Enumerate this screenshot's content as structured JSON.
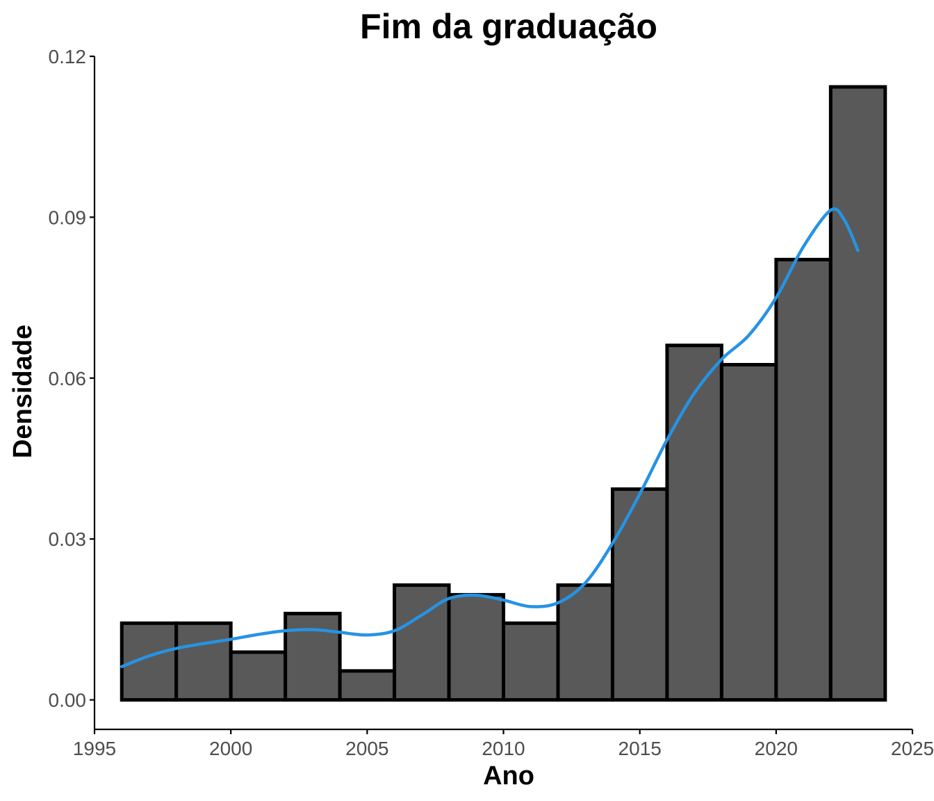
{
  "chart_data": {
    "type": "bar",
    "title": "Fim da graduação",
    "xlabel": "Ano",
    "ylabel": "Densidade",
    "xlim": [
      1995,
      2025
    ],
    "ylim": [
      -0.0055,
      0.12
    ],
    "x_ticks": [
      1995,
      2000,
      2005,
      2010,
      2015,
      2020,
      2025
    ],
    "x_tick_labels": [
      "1995",
      "2000",
      "2005",
      "2010",
      "2015",
      "2020",
      "2025"
    ],
    "y_ticks": [
      0.0,
      0.03,
      0.06,
      0.09,
      0.12
    ],
    "y_tick_labels": [
      "0.00",
      "0.03",
      "0.06",
      "0.09",
      "0.12"
    ],
    "bins": [
      {
        "x0": 1996,
        "x1": 1998,
        "value": 0.0143
      },
      {
        "x0": 1998,
        "x1": 2000,
        "value": 0.0143
      },
      {
        "x0": 2000,
        "x1": 2002,
        "value": 0.0089
      },
      {
        "x0": 2002,
        "x1": 2004,
        "value": 0.0161
      },
      {
        "x0": 2004,
        "x1": 2006,
        "value": 0.0054
      },
      {
        "x0": 2006,
        "x1": 2008,
        "value": 0.0214
      },
      {
        "x0": 2008,
        "x1": 2010,
        "value": 0.0196
      },
      {
        "x0": 2010,
        "x1": 2012,
        "value": 0.0143
      },
      {
        "x0": 2012,
        "x1": 2014,
        "value": 0.0214
      },
      {
        "x0": 2014,
        "x1": 2016,
        "value": 0.0393
      },
      {
        "x0": 2016,
        "x1": 2018,
        "value": 0.0661
      },
      {
        "x0": 2018,
        "x1": 2020,
        "value": 0.0625
      },
      {
        "x0": 2020,
        "x1": 2022,
        "value": 0.0821
      },
      {
        "x0": 2022,
        "x1": 2024,
        "value": 0.1143
      }
    ],
    "density_curve": {
      "x": [
        1996,
        1997,
        1998,
        1999,
        2000,
        2001,
        2002,
        2003,
        2004,
        2005,
        2006,
        2007,
        2008,
        2009,
        2010,
        2011,
        2012,
        2013,
        2014,
        2015,
        2016,
        2017,
        2018,
        2019,
        2020,
        2021,
        2022,
        2022.5,
        2023
      ],
      "y": [
        0.0062,
        0.0082,
        0.0096,
        0.0105,
        0.0113,
        0.0122,
        0.0129,
        0.0131,
        0.0126,
        0.0121,
        0.0129,
        0.0158,
        0.0189,
        0.0195,
        0.0186,
        0.0174,
        0.0181,
        0.0218,
        0.0292,
        0.0384,
        0.0485,
        0.0572,
        0.0635,
        0.068,
        0.075,
        0.0845,
        0.0913,
        0.0895,
        0.0838
      ]
    },
    "colors": {
      "bar_fill": "#595959",
      "bar_stroke": "#000000",
      "density_line": "#2693e3"
    },
    "grid": false,
    "legend": "none"
  }
}
